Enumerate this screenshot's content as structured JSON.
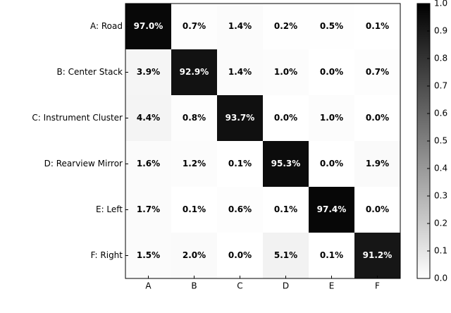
{
  "chart_data": {
    "type": "heatmap",
    "categories": [
      "A",
      "B",
      "C",
      "D",
      "E",
      "F"
    ],
    "y_categories": [
      "A: Road",
      "B: Center Stack",
      "C: Instrument Cluster",
      "D: Rearview Mirror",
      "E: Left",
      "F: Right"
    ],
    "values": [
      [
        0.97,
        0.007,
        0.014,
        0.002,
        0.005,
        0.001
      ],
      [
        0.039,
        0.929,
        0.014,
        0.01,
        0.0,
        0.007
      ],
      [
        0.044,
        0.008,
        0.937,
        0.0,
        0.01,
        0.0
      ],
      [
        0.016,
        0.012,
        0.001,
        0.953,
        0.0,
        0.019
      ],
      [
        0.017,
        0.001,
        0.006,
        0.001,
        0.974,
        0.0
      ],
      [
        0.015,
        0.02,
        0.0,
        0.051,
        0.001,
        0.912
      ]
    ],
    "value_labels": [
      [
        "97.0%",
        "0.7%",
        "1.4%",
        "0.2%",
        "0.5%",
        "0.1%"
      ],
      [
        "3.9%",
        "92.9%",
        "1.4%",
        "1.0%",
        "0.0%",
        "0.7%"
      ],
      [
        "4.4%",
        "0.8%",
        "93.7%",
        "0.0%",
        "1.0%",
        "0.0%"
      ],
      [
        "1.6%",
        "1.2%",
        "0.1%",
        "95.3%",
        "0.0%",
        "1.9%"
      ],
      [
        "1.7%",
        "0.1%",
        "0.6%",
        "0.1%",
        "97.4%",
        "0.0%"
      ],
      [
        "1.5%",
        "2.0%",
        "0.0%",
        "5.1%",
        "0.1%",
        "91.2%"
      ]
    ],
    "colormap": "Greys",
    "clim": [
      0,
      1
    ],
    "cticks": [
      {
        "value": 0,
        "label": "0.0"
      },
      0.1,
      0.2,
      0.3,
      0.4,
      0.5,
      0.6,
      0.7,
      0.8,
      0.9,
      {
        "value": 1,
        "label": "1.0"
      }
    ]
  }
}
